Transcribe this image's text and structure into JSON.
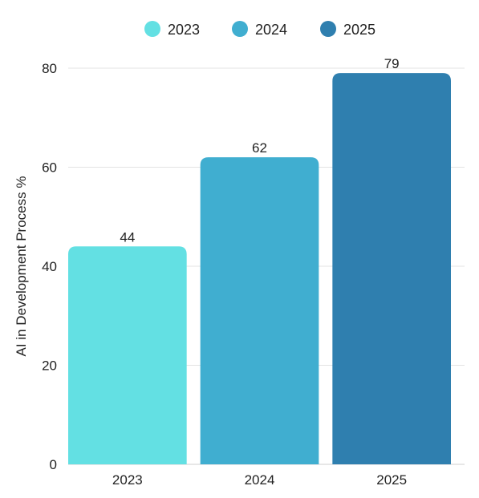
{
  "chart_data": {
    "type": "bar",
    "categories": [
      "2023",
      "2024",
      "2025"
    ],
    "series": [
      {
        "name": "2023",
        "values": [
          44,
          null,
          null
        ]
      },
      {
        "name": "2024",
        "values": [
          null,
          62,
          null
        ]
      },
      {
        "name": "2025",
        "values": [
          null,
          null,
          79
        ]
      }
    ],
    "values": [
      44,
      62,
      79
    ],
    "data_labels": [
      "44",
      "62",
      "79"
    ],
    "ylabel": "AI in Development Process %",
    "xlabel": "",
    "ylim": [
      0,
      80
    ],
    "yticks": [
      0,
      20,
      40,
      60,
      80
    ],
    "ytick_labels": [
      "0",
      "20",
      "40",
      "60",
      "80"
    ],
    "legend": {
      "position": "top-center",
      "items": [
        {
          "label": "2023",
          "color": "#63e0e3"
        },
        {
          "label": "2024",
          "color": "#40aed0"
        },
        {
          "label": "2025",
          "color": "#2f7faf"
        }
      ]
    },
    "colors": [
      "#63e0e3",
      "#40aed0",
      "#2f7faf"
    ],
    "grid": true
  }
}
